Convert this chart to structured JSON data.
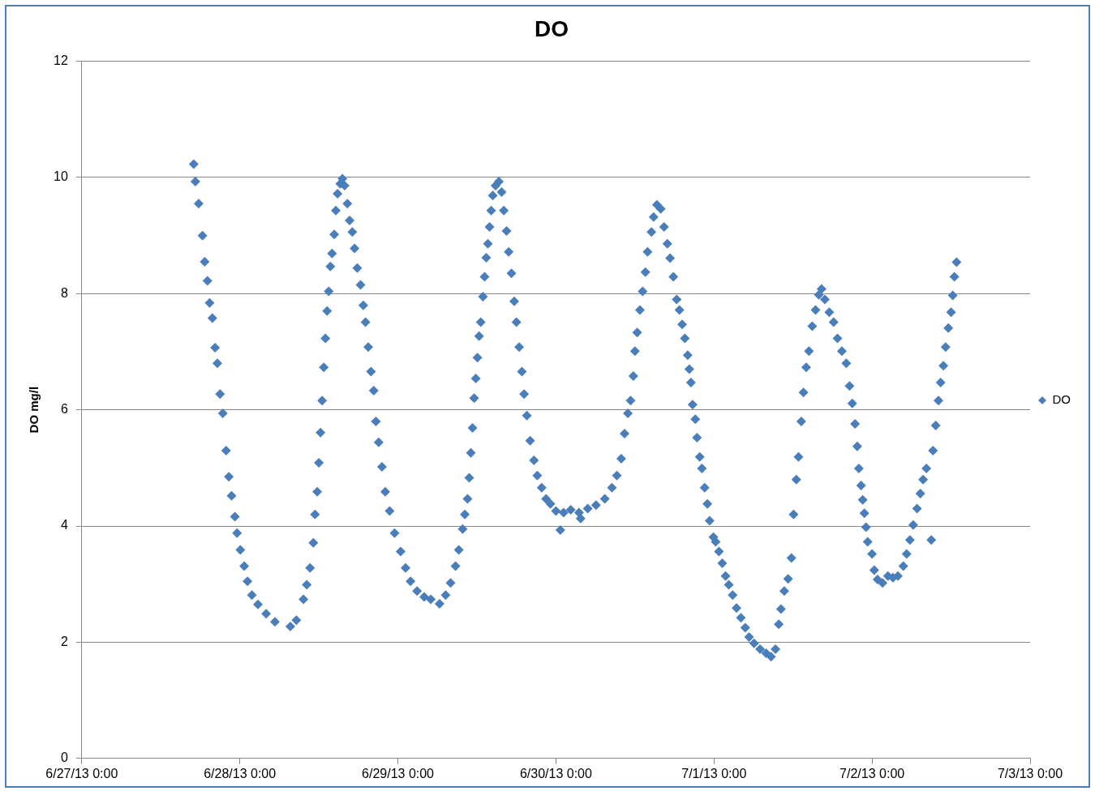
{
  "chart_data": {
    "type": "scatter",
    "title": "DO",
    "ylabel": "DO mg/l",
    "marker": "diamond",
    "grid": "y",
    "legend": "right",
    "xlim": [
      "--06-27T00:00",
      "--07-03T00:00"
    ],
    "xticks": [
      {
        "value": "--06-27T00:00",
        "label": "6/27/13 0:00"
      },
      {
        "value": "--06-28T00:00",
        "label": "6/28/13 0:00"
      },
      {
        "value": "--06-29T00:00",
        "label": "6/29/13 0:00"
      },
      {
        "value": "--06-30T00:00",
        "label": "6/30/13 0:00"
      },
      {
        "value": "--07-01T00:00",
        "label": "7/1/13 0:00"
      },
      {
        "value": "--07-02T00:00",
        "label": "7/2/13 0:00"
      },
      {
        "value": "--07-03T00:00",
        "label": "7/3/13 0:00"
      }
    ],
    "ylim": [
      0,
      12
    ],
    "yticks": [
      0,
      2,
      4,
      6,
      8,
      10,
      12
    ],
    "series": [
      {
        "name": "DO",
        "color": "#4a7ebb",
        "x": [
          "--06-27T17:00",
          "--06-27T17:15",
          "--06-27T17:45",
          "--06-27T18:20",
          "--06-27T18:40",
          "--06-27T19:05",
          "--06-27T19:25",
          "--06-27T19:50",
          "--06-27T20:15",
          "--06-27T20:35",
          "--06-27T21:00",
          "--06-27T21:25",
          "--06-27T21:55",
          "--06-27T22:20",
          "--06-27T22:45",
          "--06-27T23:15",
          "--06-27T23:35",
          "--06-28T00:05",
          "--06-28T00:40",
          "--06-28T01:10",
          "--06-28T01:50",
          "--06-28T02:45",
          "--06-28T04:00",
          "--06-28T05:20",
          "--06-28T07:40",
          "--06-28T08:35",
          "--06-28T09:40",
          "--06-28T10:10",
          "--06-28T10:40",
          "--06-28T11:10",
          "--06-28T11:25",
          "--06-28T11:45",
          "--06-28T12:00",
          "--06-28T12:15",
          "--06-28T12:30",
          "--06-28T12:45",
          "--06-28T13:00",
          "--06-28T13:15",
          "--06-28T13:30",
          "--06-28T13:45",
          "--06-28T14:00",
          "--06-28T14:20",
          "--06-28T14:35",
          "--06-28T14:50",
          "--06-28T15:15",
          "--06-28T15:35",
          "--06-28T15:55",
          "--06-28T16:20",
          "--06-28T16:40",
          "--06-28T17:05",
          "--06-28T17:25",
          "--06-28T17:50",
          "--06-28T18:20",
          "--06-28T18:45",
          "--06-28T19:05",
          "--06-28T19:30",
          "--06-28T19:55",
          "--06-28T20:20",
          "--06-28T20:40",
          "--06-28T21:05",
          "--06-28T21:35",
          "--06-28T22:05",
          "--06-28T22:45",
          "--06-28T23:30",
          "--06-29T00:25",
          "--06-29T01:10",
          "--06-29T01:55",
          "--06-29T02:55",
          "--06-29T04:00",
          "--06-29T05:00",
          "--06-29T06:20",
          "--06-29T07:15",
          "--06-29T08:00",
          "--06-29T08:45",
          "--06-29T09:15",
          "--06-29T09:50",
          "--06-29T10:10",
          "--06-29T10:35",
          "--06-29T10:50",
          "--06-29T11:05",
          "--06-29T11:20",
          "--06-29T11:35",
          "--06-29T11:50",
          "--06-29T12:05",
          "--06-29T12:20",
          "--06-29T12:35",
          "--06-29T12:55",
          "--06-29T13:10",
          "--06-29T13:25",
          "--06-29T13:40",
          "--06-29T13:55",
          "--06-29T14:10",
          "--06-29T14:25",
          "--06-29T14:50",
          "--06-29T15:20",
          "--06-29T15:45",
          "--06-29T16:05",
          "--06-29T16:30",
          "--06-29T16:50",
          "--06-29T17:15",
          "--06-29T17:40",
          "--06-29T18:00",
          "--06-29T18:25",
          "--06-29T18:50",
          "--06-29T19:10",
          "--06-29T19:35",
          "--06-29T20:05",
          "--06-29T20:40",
          "--06-29T21:10",
          "--06-29T21:50",
          "--06-29T22:30",
          "--06-29T23:10",
          "--06-30T00:00",
          "--06-30T00:40",
          "--06-30T01:10",
          "--06-30T02:15",
          "--06-30T03:30",
          "--06-30T03:45",
          "--06-30T04:50",
          "--06-30T06:05",
          "--06-30T07:25",
          "--06-30T08:30",
          "--06-30T09:15",
          "--06-30T09:55",
          "--06-30T10:25",
          "--06-30T10:55",
          "--06-30T11:20",
          "--06-30T11:45",
          "--06-30T12:00",
          "--06-30T12:20",
          "--06-30T12:45",
          "--06-30T13:10",
          "--06-30T13:35",
          "--06-30T13:55",
          "--06-30T14:30",
          "--06-30T14:50",
          "--06-30T15:20",
          "--06-30T15:55",
          "--06-30T16:25",
          "--06-30T16:55",
          "--06-30T17:20",
          "--06-30T17:50",
          "--06-30T18:20",
          "--06-30T18:45",
          "--06-30T19:10",
          "--06-30T19:35",
          "--06-30T20:00",
          "--06-30T20:15",
          "--06-30T20:30",
          "--06-30T20:45",
          "--06-30T21:10",
          "--06-30T21:25",
          "--06-30T21:50",
          "--06-30T22:10",
          "--06-30T22:35",
          "--06-30T23:00",
          "--06-30T23:20",
          "--06-30T23:55",
          "--07-01T00:15",
          "--07-01T00:45",
          "--07-01T01:15",
          "--07-01T01:45",
          "--07-01T02:15",
          "--07-01T02:50",
          "--07-01T03:25",
          "--07-01T04:05",
          "--07-01T04:45",
          "--07-01T05:20",
          "--07-01T06:05",
          "--07-01T07:00",
          "--07-01T07:55",
          "--07-01T08:40",
          "--07-01T09:20",
          "--07-01T09:50",
          "--07-01T10:10",
          "--07-01T10:40",
          "--07-01T11:15",
          "--07-01T11:45",
          "--07-01T12:05",
          "--07-01T12:30",
          "--07-01T12:50",
          "--07-01T13:15",
          "--07-01T13:35",
          "--07-01T14:00",
          "--07-01T14:25",
          "--07-01T14:55",
          "--07-01T15:25",
          "--07-01T15:55",
          "--07-01T16:20",
          "--07-01T16:50",
          "--07-01T17:30",
          "--07-01T18:10",
          "--07-01T18:45",
          "--07-01T19:25",
          "--07-01T20:05",
          "--07-01T20:35",
          "--07-01T21:00",
          "--07-01T21:25",
          "--07-01T21:45",
          "--07-01T22:00",
          "--07-01T22:20",
          "--07-01T22:35",
          "--07-01T22:50",
          "--07-01T23:05",
          "--07-01T23:20",
          "--07-02T00:00",
          "--07-02T00:20",
          "--07-02T00:50",
          "--07-02T01:35",
          "--07-02T02:25",
          "--07-02T03:10",
          "--07-02T03:55",
          "--07-02T04:45",
          "--07-02T05:15",
          "--07-02T05:45",
          "--07-02T06:15",
          "--07-02T06:50",
          "--07-02T07:20",
          "--07-02T07:45",
          "--07-02T08:15",
          "--07-02T09:00",
          "--07-02T09:15",
          "--07-02T09:40",
          "--07-02T10:05",
          "--07-02T10:25",
          "--07-02T10:50",
          "--07-02T11:10",
          "--07-02T11:35",
          "--07-02T12:00",
          "--07-02T12:15",
          "--07-02T12:30",
          "--07-02T12:50"
        ],
        "values": [
          10.23,
          9.93,
          9.55,
          9.0,
          8.55,
          8.22,
          7.84,
          7.58,
          7.07,
          6.8,
          6.27,
          5.94,
          5.3,
          4.85,
          4.52,
          4.16,
          3.88,
          3.59,
          3.31,
          3.05,
          2.81,
          2.65,
          2.49,
          2.35,
          2.27,
          2.38,
          2.74,
          2.99,
          3.28,
          3.71,
          4.2,
          4.59,
          5.09,
          5.61,
          6.16,
          6.73,
          7.23,
          7.7,
          8.04,
          8.47,
          8.69,
          9.02,
          9.43,
          9.72,
          9.89,
          9.98,
          9.86,
          9.55,
          9.26,
          9.06,
          8.78,
          8.44,
          8.15,
          7.8,
          7.51,
          7.08,
          6.66,
          6.33,
          5.8,
          5.44,
          5.02,
          4.59,
          4.26,
          3.88,
          3.56,
          3.28,
          3.05,
          2.88,
          2.78,
          2.74,
          2.66,
          2.81,
          3.02,
          3.31,
          3.59,
          3.95,
          4.2,
          4.47,
          4.83,
          5.26,
          5.69,
          6.2,
          6.54,
          6.9,
          7.27,
          7.51,
          7.95,
          8.29,
          8.62,
          8.86,
          9.15,
          9.43,
          9.69,
          9.86,
          9.93,
          9.75,
          9.43,
          9.08,
          8.72,
          8.35,
          7.87,
          7.51,
          7.08,
          6.66,
          6.27,
          5.9,
          5.47,
          5.13,
          4.87,
          4.66,
          4.47,
          4.38,
          4.26,
          3.93,
          4.23,
          4.28,
          4.23,
          4.13,
          4.3,
          4.36,
          4.47,
          4.66,
          4.87,
          5.16,
          5.59,
          5.94,
          6.16,
          6.58,
          7.01,
          7.33,
          7.72,
          8.04,
          8.37,
          8.72,
          9.06,
          9.32,
          9.53,
          9.46,
          9.15,
          8.86,
          8.61,
          8.29,
          7.9,
          7.72,
          7.47,
          7.23,
          6.94,
          6.7,
          6.47,
          6.09,
          5.84,
          5.52,
          5.19,
          4.99,
          4.66,
          4.38,
          4.09,
          3.81,
          3.73,
          3.56,
          3.36,
          3.14,
          2.99,
          2.81,
          2.59,
          2.42,
          2.25,
          2.09,
          1.98,
          1.88,
          1.81,
          1.75,
          1.88,
          2.31,
          2.57,
          2.88,
          3.09,
          3.45,
          4.2,
          4.8,
          5.19,
          5.8,
          6.3,
          6.73,
          7.01,
          7.44,
          7.72,
          7.98,
          8.08,
          7.9,
          7.68,
          7.51,
          7.23,
          7.01,
          6.8,
          6.41,
          6.11,
          5.76,
          5.37,
          4.99,
          4.7,
          4.45,
          4.22,
          3.98,
          3.73,
          3.52,
          3.24,
          3.08,
          3.02,
          3.14,
          3.11,
          3.14,
          3.31,
          3.52,
          3.76,
          4.02,
          4.3,
          4.56,
          4.8,
          4.99,
          3.76,
          5.3,
          5.73,
          6.16,
          6.47,
          6.76,
          7.08,
          7.41,
          7.68,
          7.97,
          8.29,
          8.54
        ]
      }
    ]
  }
}
